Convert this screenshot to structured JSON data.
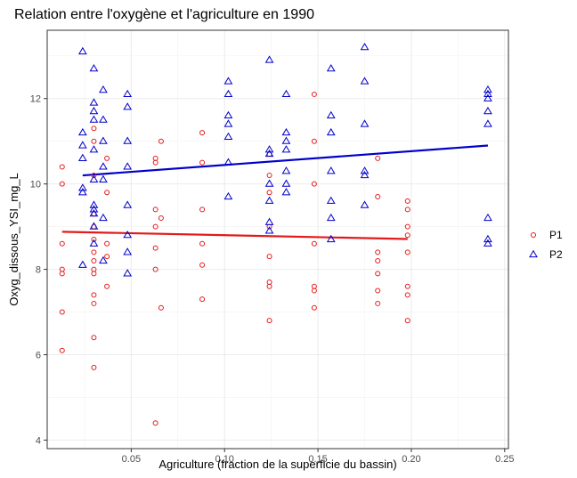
{
  "chart_data": {
    "type": "scatter",
    "title": "Relation entre l'oxygène et l'agriculture en 1990",
    "xlabel": "Agriculture (fraction de la superficie du bassin)",
    "ylabel": "Oxyg_dissous_YSI_mg_L",
    "xlim": [
      0.005,
      0.252
    ],
    "ylim": [
      3.8,
      13.6
    ],
    "x_ticks": [
      0.05,
      0.1,
      0.15,
      0.2,
      0.25
    ],
    "x_tick_labels": [
      "0.05",
      "0.10",
      "0.15",
      "0.20",
      "0.25"
    ],
    "y_ticks": [
      4,
      6,
      8,
      10,
      12
    ],
    "y_tick_labels": [
      "4",
      "6",
      "8",
      "10",
      "12"
    ],
    "grid": true,
    "legend_position": "right",
    "series": [
      {
        "name": "P1",
        "marker": "circle",
        "color": "#e31a1c",
        "points": [
          [
            0.013,
            6.1
          ],
          [
            0.013,
            7.0
          ],
          [
            0.013,
            7.9
          ],
          [
            0.013,
            8.0
          ],
          [
            0.013,
            8.6
          ],
          [
            0.013,
            10.0
          ],
          [
            0.013,
            10.4
          ],
          [
            0.03,
            5.7
          ],
          [
            0.03,
            6.4
          ],
          [
            0.03,
            7.2
          ],
          [
            0.03,
            7.4
          ],
          [
            0.03,
            7.9
          ],
          [
            0.03,
            8.0
          ],
          [
            0.03,
            8.2
          ],
          [
            0.03,
            8.4
          ],
          [
            0.03,
            8.7
          ],
          [
            0.03,
            9.0
          ],
          [
            0.03,
            9.3
          ],
          [
            0.03,
            10.2
          ],
          [
            0.03,
            11.0
          ],
          [
            0.03,
            11.3
          ],
          [
            0.037,
            7.6
          ],
          [
            0.037,
            8.3
          ],
          [
            0.037,
            8.6
          ],
          [
            0.037,
            9.8
          ],
          [
            0.037,
            10.6
          ],
          [
            0.063,
            4.4
          ],
          [
            0.063,
            8.0
          ],
          [
            0.063,
            8.5
          ],
          [
            0.063,
            9.0
          ],
          [
            0.063,
            9.4
          ],
          [
            0.063,
            10.5
          ],
          [
            0.063,
            10.6
          ],
          [
            0.066,
            7.1
          ],
          [
            0.066,
            9.2
          ],
          [
            0.066,
            11.0
          ],
          [
            0.088,
            7.3
          ],
          [
            0.088,
            8.1
          ],
          [
            0.088,
            8.6
          ],
          [
            0.088,
            9.4
          ],
          [
            0.088,
            10.5
          ],
          [
            0.088,
            11.2
          ],
          [
            0.124,
            6.8
          ],
          [
            0.124,
            7.6
          ],
          [
            0.124,
            7.7
          ],
          [
            0.124,
            8.3
          ],
          [
            0.124,
            9.0
          ],
          [
            0.124,
            9.8
          ],
          [
            0.124,
            10.2
          ],
          [
            0.124,
            10.7
          ],
          [
            0.148,
            7.1
          ],
          [
            0.148,
            7.5
          ],
          [
            0.148,
            7.6
          ],
          [
            0.148,
            8.6
          ],
          [
            0.148,
            10.0
          ],
          [
            0.148,
            11.0
          ],
          [
            0.148,
            12.1
          ],
          [
            0.182,
            7.2
          ],
          [
            0.182,
            7.5
          ],
          [
            0.182,
            7.9
          ],
          [
            0.182,
            8.2
          ],
          [
            0.182,
            8.4
          ],
          [
            0.182,
            9.7
          ],
          [
            0.182,
            10.6
          ],
          [
            0.198,
            6.8
          ],
          [
            0.198,
            7.4
          ],
          [
            0.198,
            7.6
          ],
          [
            0.198,
            8.4
          ],
          [
            0.198,
            8.8
          ],
          [
            0.198,
            9.0
          ],
          [
            0.198,
            9.4
          ],
          [
            0.198,
            9.6
          ]
        ],
        "trend": [
          [
            0.013,
            8.88
          ],
          [
            0.198,
            8.71
          ]
        ]
      },
      {
        "name": "P2",
        "marker": "triangle",
        "color": "#0000cc",
        "points": [
          [
            0.024,
            8.1
          ],
          [
            0.024,
            9.8
          ],
          [
            0.024,
            9.9
          ],
          [
            0.024,
            10.6
          ],
          [
            0.024,
            10.9
          ],
          [
            0.024,
            11.2
          ],
          [
            0.024,
            13.1
          ],
          [
            0.03,
            8.6
          ],
          [
            0.03,
            9.0
          ],
          [
            0.03,
            9.3
          ],
          [
            0.03,
            9.4
          ],
          [
            0.03,
            9.5
          ],
          [
            0.03,
            10.1
          ],
          [
            0.03,
            10.8
          ],
          [
            0.03,
            11.5
          ],
          [
            0.03,
            11.7
          ],
          [
            0.03,
            11.9
          ],
          [
            0.03,
            12.7
          ],
          [
            0.035,
            8.2
          ],
          [
            0.035,
            9.2
          ],
          [
            0.035,
            10.1
          ],
          [
            0.035,
            10.4
          ],
          [
            0.035,
            11.0
          ],
          [
            0.035,
            11.5
          ],
          [
            0.035,
            12.2
          ],
          [
            0.048,
            7.9
          ],
          [
            0.048,
            8.4
          ],
          [
            0.048,
            8.8
          ],
          [
            0.048,
            9.5
          ],
          [
            0.048,
            10.4
          ],
          [
            0.048,
            11.0
          ],
          [
            0.048,
            11.8
          ],
          [
            0.048,
            12.1
          ],
          [
            0.102,
            9.7
          ],
          [
            0.102,
            10.5
          ],
          [
            0.102,
            11.1
          ],
          [
            0.102,
            11.4
          ],
          [
            0.102,
            11.6
          ],
          [
            0.102,
            12.1
          ],
          [
            0.102,
            12.4
          ],
          [
            0.124,
            8.9
          ],
          [
            0.124,
            9.1
          ],
          [
            0.124,
            9.6
          ],
          [
            0.124,
            10.0
          ],
          [
            0.124,
            10.7
          ],
          [
            0.124,
            10.8
          ],
          [
            0.124,
            12.9
          ],
          [
            0.133,
            9.8
          ],
          [
            0.133,
            10.0
          ],
          [
            0.133,
            10.3
          ],
          [
            0.133,
            10.8
          ],
          [
            0.133,
            11.0
          ],
          [
            0.133,
            11.2
          ],
          [
            0.133,
            12.1
          ],
          [
            0.157,
            8.7
          ],
          [
            0.157,
            9.2
          ],
          [
            0.157,
            9.6
          ],
          [
            0.157,
            10.3
          ],
          [
            0.157,
            11.2
          ],
          [
            0.157,
            11.6
          ],
          [
            0.157,
            12.7
          ],
          [
            0.175,
            9.5
          ],
          [
            0.175,
            10.2
          ],
          [
            0.175,
            10.3
          ],
          [
            0.175,
            11.4
          ],
          [
            0.175,
            12.4
          ],
          [
            0.175,
            13.2
          ],
          [
            0.241,
            8.6
          ],
          [
            0.241,
            8.7
          ],
          [
            0.241,
            9.2
          ],
          [
            0.241,
            11.4
          ],
          [
            0.241,
            11.7
          ],
          [
            0.241,
            12.0
          ],
          [
            0.241,
            12.1
          ],
          [
            0.241,
            12.2
          ]
        ],
        "trend": [
          [
            0.024,
            10.2
          ],
          [
            0.241,
            10.9
          ]
        ]
      }
    ]
  }
}
